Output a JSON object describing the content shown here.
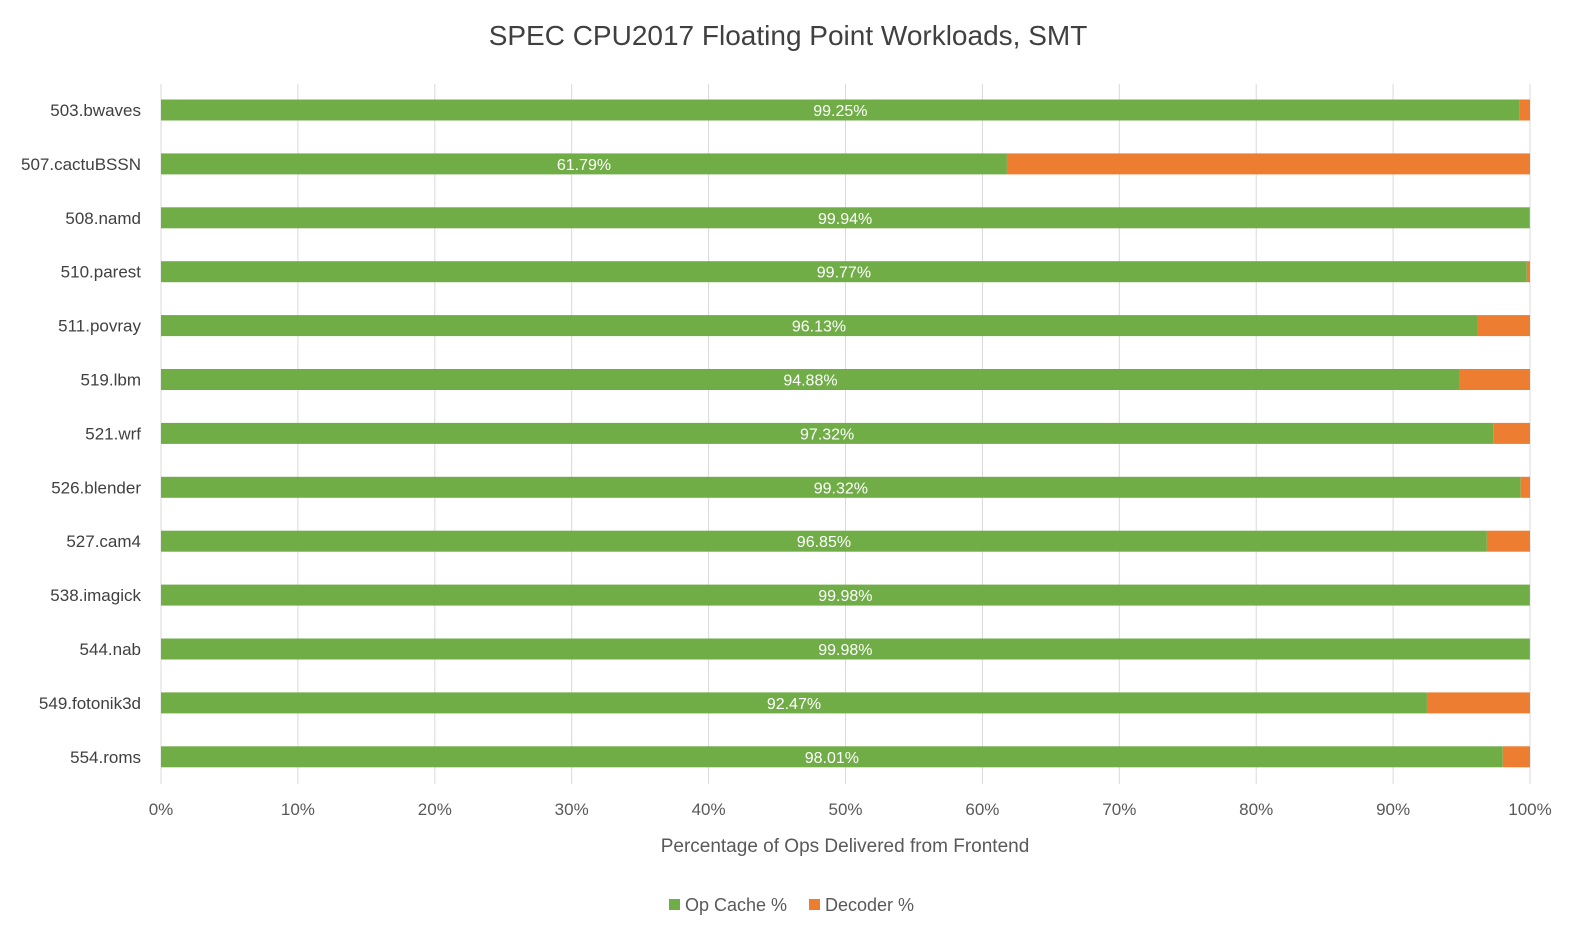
{
  "chart_data": {
    "type": "bar",
    "orientation": "horizontal",
    "stacked": "percent",
    "title": "SPEC CPU2017 Floating Point Workloads, SMT",
    "xlabel": "Percentage of Ops Delivered from Frontend",
    "ylabel": "",
    "xlim": [
      0,
      100
    ],
    "x_ticks": [
      "0%",
      "10%",
      "20%",
      "30%",
      "40%",
      "50%",
      "60%",
      "70%",
      "80%",
      "90%",
      "100%"
    ],
    "grid": "vertical",
    "legend_position": "bottom",
    "categories": [
      "503.bwaves",
      "507.cactuBSSN",
      "508.namd",
      "510.parest",
      "511.povray",
      "519.lbm",
      "521.wrf",
      "526.blender",
      "527.cam4",
      "538.imagick",
      "544.nab",
      "549.fotonik3d",
      "554.roms"
    ],
    "series": [
      {
        "name": "Op Cache %",
        "color": "#70ad47",
        "values": [
          99.25,
          61.79,
          99.94,
          99.77,
          96.13,
          94.88,
          97.32,
          99.32,
          96.85,
          99.98,
          99.98,
          92.47,
          98.01
        ],
        "data_labels": [
          "99.25%",
          "61.79%",
          "99.94%",
          "99.77%",
          "96.13%",
          "94.88%",
          "97.32%",
          "99.32%",
          "96.85%",
          "99.98%",
          "99.98%",
          "92.47%",
          "98.01%"
        ]
      },
      {
        "name": "Decoder %",
        "color": "#ed7d31",
        "values": [
          0.75,
          38.21,
          0.06,
          0.23,
          3.87,
          5.12,
          2.68,
          0.68,
          3.15,
          0.02,
          0.02,
          7.53,
          1.99
        ]
      }
    ]
  }
}
